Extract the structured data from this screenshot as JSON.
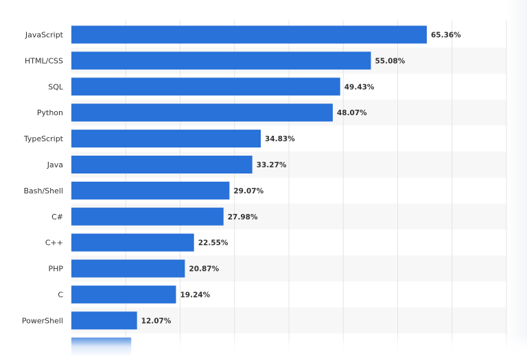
{
  "chart_data": {
    "type": "bar",
    "orientation": "horizontal",
    "categories": [
      "JavaScript",
      "HTML/CSS",
      "SQL",
      "Python",
      "TypeScript",
      "Java",
      "Bash/Shell",
      "C#",
      "C++",
      "PHP",
      "C",
      "PowerShell",
      ""
    ],
    "values": [
      65.36,
      55.08,
      49.43,
      48.07,
      34.83,
      33.27,
      29.07,
      27.98,
      22.55,
      20.87,
      19.24,
      12.07,
      11.0
    ],
    "value_labels": [
      "65.36%",
      "55.08%",
      "49.43%",
      "48.07%",
      "34.83%",
      "33.27%",
      "29.07%",
      "27.98%",
      "22.55%",
      "20.87%",
      "19.24%",
      "12.07%",
      ""
    ],
    "xlim": [
      0,
      80
    ],
    "grid": true,
    "bar_color": "#2872d9",
    "stripe_color": "#f7f7f7",
    "grid_color": "#e4e4e4",
    "label_color": "#333333",
    "value_color": "#333333"
  }
}
